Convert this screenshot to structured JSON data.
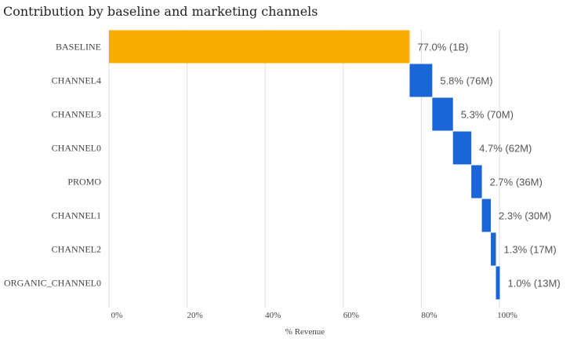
{
  "chart_data": {
    "type": "bar",
    "subtype": "waterfall-horizontal",
    "title": "Contribution by baseline and marketing channels",
    "xlabel": "% Revenue",
    "ylabel": "",
    "xlim": [
      0,
      100
    ],
    "xticks": [
      0,
      20,
      40,
      60,
      80,
      100
    ],
    "xtick_labels": [
      "0%",
      "20%",
      "40%",
      "60%",
      "80%",
      "100%"
    ],
    "grid": true,
    "categories": [
      "BASELINE",
      "CHANNEL4",
      "CHANNEL3",
      "CHANNEL0",
      "PROMO",
      "CHANNEL1",
      "CHANNEL2",
      "ORGANIC_CHANNEL0"
    ],
    "values": [
      77.0,
      5.8,
      5.3,
      4.7,
      2.7,
      2.3,
      1.3,
      1.0
    ],
    "value_labels": [
      "77.0% (1B)",
      "5.8% (76M)",
      "5.3% (70M)",
      "4.7% (62M)",
      "2.7% (36M)",
      "2.3% (30M)",
      "1.3% (17M)",
      "1.0% (13M)"
    ],
    "colors": {
      "baseline": "#F7AD00",
      "channel": "#1A66D9"
    }
  }
}
